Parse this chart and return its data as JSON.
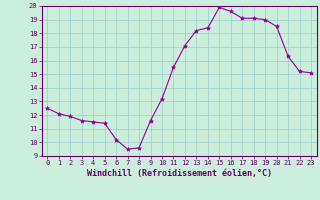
{
  "hours": [
    0,
    1,
    2,
    3,
    4,
    5,
    6,
    7,
    8,
    9,
    10,
    11,
    12,
    13,
    14,
    15,
    16,
    17,
    18,
    19,
    20,
    21,
    22,
    23
  ],
  "values": [
    12.5,
    12.1,
    11.9,
    11.6,
    11.5,
    11.4,
    10.2,
    9.5,
    9.6,
    11.6,
    13.2,
    15.5,
    17.1,
    18.2,
    18.4,
    19.9,
    19.6,
    19.1,
    19.1,
    19.0,
    18.5,
    16.3,
    15.2,
    15.1
  ],
  "line_color": "#990099",
  "marker": "*",
  "markersize": 3.0,
  "linewidth": 0.8,
  "bg_color": "#cceedd",
  "grid_color": "#99cccc",
  "xlabel": "Windchill (Refroidissement éolien,°C)",
  "xlabel_fontsize": 6.0,
  "ylim": [
    9,
    20
  ],
  "xlim": [
    -0.5,
    23.5
  ],
  "yticks": [
    9,
    10,
    11,
    12,
    13,
    14,
    15,
    16,
    17,
    18,
    19,
    20
  ],
  "xticks": [
    0,
    1,
    2,
    3,
    4,
    5,
    6,
    7,
    8,
    9,
    10,
    11,
    12,
    13,
    14,
    15,
    16,
    17,
    18,
    19,
    20,
    21,
    22,
    23
  ],
  "tick_fontsize": 5.0,
  "axis_color": "#660066",
  "spine_color": "#660066"
}
